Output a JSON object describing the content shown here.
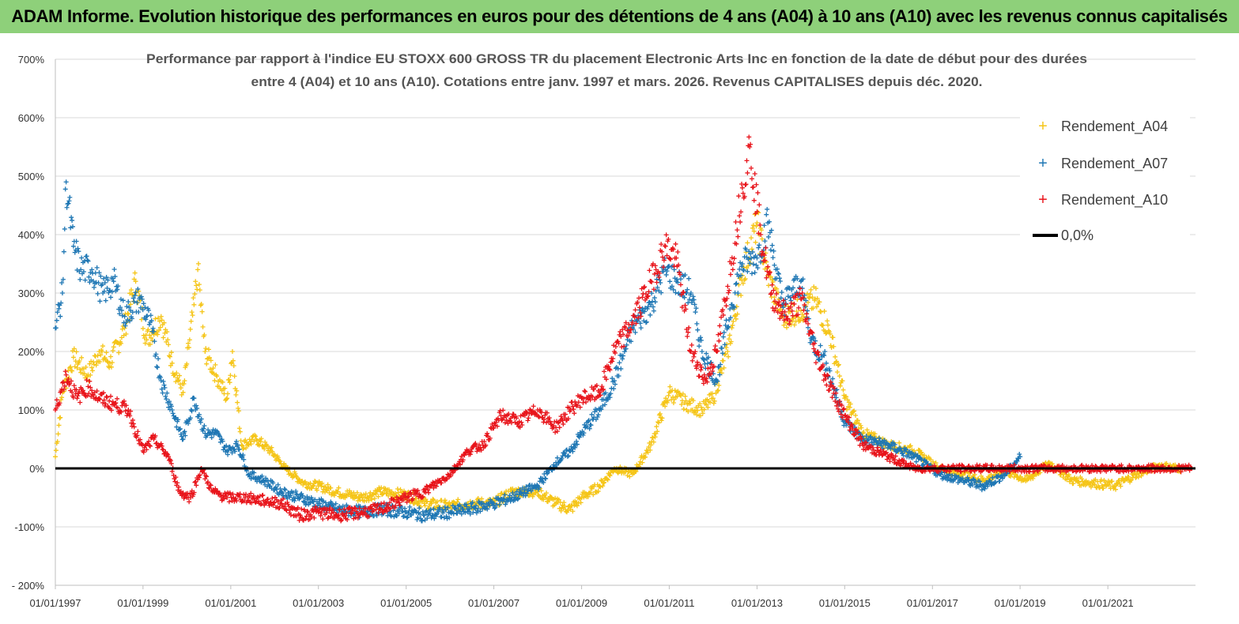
{
  "header": {
    "title": "ADAM Informe. Evolution historique des performances en euros pour des détentions de 4 ans (A04) à 10 ans (A10) avec les revenus connus capitalisés"
  },
  "chart_data": {
    "type": "scatter",
    "title_lines": [
      "Performance par rapport à l'indice EU STOXX 600 GROSS TR  du placement Electronic Arts Inc en fonction de la date de début pour des durées",
      "entre 4 (A04) et 10 ans (A10).  Cotations entre janv. 1997 et mars. 2026. Revenus CAPITALISES depuis déc. 2020."
    ],
    "xlabel": "",
    "ylabel": "",
    "x_range": [
      "1997-01-01",
      "2023-01-01"
    ],
    "ylim": [
      -200,
      700
    ],
    "y_ticks": [
      -200,
      -100,
      0,
      100,
      200,
      300,
      400,
      500,
      600,
      700
    ],
    "y_tick_labels": [
      "- 200%",
      "-100%",
      "0%",
      "100%",
      "200%",
      "300%",
      "400%",
      "500%",
      "600%",
      "700%"
    ],
    "x_ticks": [
      "1997-01-01",
      "1999-01-01",
      "2001-01-01",
      "2003-01-01",
      "2005-01-01",
      "2007-01-01",
      "2009-01-01",
      "2011-01-01",
      "2013-01-01",
      "2015-01-01",
      "2017-01-01",
      "2019-01-01",
      "2021-01-01"
    ],
    "x_tick_labels": [
      "01/01/1997",
      "01/01/1999",
      "01/01/2001",
      "01/01/2003",
      "01/01/2005",
      "01/01/2007",
      "01/01/2009",
      "01/01/2011",
      "01/01/2013",
      "01/01/2015",
      "01/01/2017",
      "01/01/2019",
      "01/01/2021"
    ],
    "grid": "horizontal",
    "legend_position": "top-right",
    "series": [
      {
        "name": "Rendement_A04",
        "color": "#f5c518",
        "marker": "+",
        "points": [
          [
            "1997-01-01",
            20
          ],
          [
            "1997-03-01",
            130
          ],
          [
            "1997-06-01",
            190
          ],
          [
            "1997-10-01",
            160
          ],
          [
            "1998-01-01",
            200
          ],
          [
            "1998-04-01",
            180
          ],
          [
            "1998-08-01",
            240
          ],
          [
            "1998-11-01",
            320
          ],
          [
            "1999-02-01",
            220
          ],
          [
            "1999-06-01",
            260
          ],
          [
            "1999-09-01",
            180
          ],
          [
            "1999-12-01",
            130
          ],
          [
            "2000-03-01",
            280
          ],
          [
            "2000-04-01",
            340
          ],
          [
            "2000-06-01",
            200
          ],
          [
            "2000-09-01",
            160
          ],
          [
            "2000-12-01",
            120
          ],
          [
            "2001-01-15",
            200
          ],
          [
            "2001-04-01",
            40
          ],
          [
            "2001-08-01",
            50
          ],
          [
            "2001-12-01",
            30
          ],
          [
            "2002-04-01",
            0
          ],
          [
            "2002-09-01",
            -25
          ],
          [
            "2003-01-01",
            -30
          ],
          [
            "2003-06-01",
            -40
          ],
          [
            "2004-01-01",
            -50
          ],
          [
            "2004-06-01",
            -40
          ],
          [
            "2005-01-01",
            -45
          ],
          [
            "2005-06-01",
            -60
          ],
          [
            "2006-01-01",
            -65
          ],
          [
            "2006-06-01",
            -60
          ],
          [
            "2007-01-01",
            -60
          ],
          [
            "2007-06-01",
            -40
          ],
          [
            "2008-01-01",
            -40
          ],
          [
            "2008-06-01",
            -60
          ],
          [
            "2008-10-01",
            -70
          ],
          [
            "2009-01-01",
            -50
          ],
          [
            "2009-06-01",
            -30
          ],
          [
            "2009-10-01",
            0
          ],
          [
            "2010-03-01",
            -10
          ],
          [
            "2010-08-01",
            40
          ],
          [
            "2011-01-01",
            130
          ],
          [
            "2011-06-01",
            110
          ],
          [
            "2011-10-01",
            100
          ],
          [
            "2012-01-01",
            120
          ],
          [
            "2012-05-01",
            200
          ],
          [
            "2012-09-01",
            330
          ],
          [
            "2013-01-01",
            420
          ],
          [
            "2013-04-01",
            330
          ],
          [
            "2013-08-01",
            260
          ],
          [
            "2014-01-01",
            270
          ],
          [
            "2014-05-01",
            290
          ],
          [
            "2014-09-01",
            230
          ],
          [
            "2015-01-01",
            120
          ],
          [
            "2015-06-01",
            60
          ],
          [
            "2016-01-01",
            40
          ],
          [
            "2016-08-01",
            30
          ],
          [
            "2017-03-01",
            0
          ],
          [
            "2017-09-01",
            -10
          ],
          [
            "2018-03-01",
            -20
          ],
          [
            "2018-09-01",
            -5
          ],
          [
            "2019-03-01",
            -20
          ],
          [
            "2019-09-01",
            10
          ],
          [
            "2020-03-01",
            -20
          ],
          [
            "2020-09-01",
            -25
          ],
          [
            "2021-03-01",
            -30
          ],
          [
            "2021-09-01",
            -10
          ],
          [
            "2022-03-01",
            5
          ],
          [
            "2022-09-01",
            0
          ]
        ]
      },
      {
        "name": "Rendement_A07",
        "color": "#1f77b4",
        "marker": "+",
        "points": [
          [
            "1997-01-01",
            240
          ],
          [
            "1997-03-01",
            300
          ],
          [
            "1997-04-01",
            490
          ],
          [
            "1997-06-01",
            380
          ],
          [
            "1997-08-01",
            340
          ],
          [
            "1997-11-01",
            340
          ],
          [
            "1998-02-01",
            300
          ],
          [
            "1998-05-01",
            320
          ],
          [
            "1998-08-01",
            260
          ],
          [
            "1998-12-01",
            290
          ],
          [
            "1999-03-01",
            250
          ],
          [
            "1999-06-01",
            150
          ],
          [
            "1999-09-01",
            100
          ],
          [
            "1999-12-01",
            50
          ],
          [
            "2000-03-01",
            120
          ],
          [
            "2000-06-01",
            60
          ],
          [
            "2000-09-01",
            60
          ],
          [
            "2000-12-01",
            30
          ],
          [
            "2001-03-01",
            40
          ],
          [
            "2001-06-01",
            -10
          ],
          [
            "2001-10-01",
            -20
          ],
          [
            "2002-03-01",
            -40
          ],
          [
            "2002-08-01",
            -50
          ],
          [
            "2003-01-01",
            -60
          ],
          [
            "2003-06-01",
            -70
          ],
          [
            "2004-01-01",
            -75
          ],
          [
            "2004-06-01",
            -70
          ],
          [
            "2005-01-01",
            -75
          ],
          [
            "2005-06-01",
            -80
          ],
          [
            "2006-01-01",
            -75
          ],
          [
            "2006-06-01",
            -70
          ],
          [
            "2007-01-01",
            -60
          ],
          [
            "2007-06-01",
            -50
          ],
          [
            "2008-01-01",
            -30
          ],
          [
            "2008-06-01",
            10
          ],
          [
            "2008-10-01",
            30
          ],
          [
            "2009-01-01",
            60
          ],
          [
            "2009-06-01",
            100
          ],
          [
            "2009-10-01",
            150
          ],
          [
            "2010-03-01",
            240
          ],
          [
            "2010-08-01",
            280
          ],
          [
            "2010-12-01",
            340
          ],
          [
            "2011-03-01",
            320
          ],
          [
            "2011-07-01",
            300
          ],
          [
            "2011-10-01",
            200
          ],
          [
            "2012-02-01",
            150
          ],
          [
            "2012-06-01",
            280
          ],
          [
            "2012-09-01",
            350
          ],
          [
            "2013-01-01",
            360
          ],
          [
            "2013-04-01",
            420
          ],
          [
            "2013-08-01",
            280
          ],
          [
            "2014-01-01",
            320
          ],
          [
            "2014-04-01",
            220
          ],
          [
            "2014-08-01",
            180
          ],
          [
            "2015-01-01",
            80
          ],
          [
            "2015-06-01",
            50
          ],
          [
            "2016-01-01",
            40
          ],
          [
            "2016-08-01",
            20
          ],
          [
            "2017-03-01",
            -10
          ],
          [
            "2017-09-01",
            -20
          ],
          [
            "2018-03-01",
            -30
          ],
          [
            "2018-09-01",
            -10
          ],
          [
            "2019-01-01",
            20
          ]
        ]
      },
      {
        "name": "Rendement_A10",
        "color": "#e8141b",
        "marker": "+",
        "points": [
          [
            "1997-01-01",
            100
          ],
          [
            "1997-04-01",
            160
          ],
          [
            "1997-07-01",
            120
          ],
          [
            "1997-10-01",
            140
          ],
          [
            "1998-01-01",
            120
          ],
          [
            "1998-05-01",
            110
          ],
          [
            "1998-09-01",
            100
          ],
          [
            "1999-01-01",
            30
          ],
          [
            "1999-04-01",
            50
          ],
          [
            "1999-08-01",
            20
          ],
          [
            "1999-11-01",
            -40
          ],
          [
            "2000-02-01",
            -50
          ],
          [
            "2000-05-01",
            0
          ],
          [
            "2000-08-01",
            -40
          ],
          [
            "2000-12-01",
            -50
          ],
          [
            "2001-05-01",
            -50
          ],
          [
            "2001-10-01",
            -55
          ],
          [
            "2002-03-01",
            -60
          ],
          [
            "2002-08-01",
            -80
          ],
          [
            "2003-01-01",
            -75
          ],
          [
            "2003-06-01",
            -80
          ],
          [
            "2004-01-01",
            -75
          ],
          [
            "2004-06-01",
            -70
          ],
          [
            "2005-01-01",
            -50
          ],
          [
            "2005-06-01",
            -40
          ],
          [
            "2006-01-01",
            -10
          ],
          [
            "2006-06-01",
            30
          ],
          [
            "2006-10-01",
            40
          ],
          [
            "2007-03-01",
            90
          ],
          [
            "2007-08-01",
            80
          ],
          [
            "2008-01-01",
            100
          ],
          [
            "2008-06-01",
            70
          ],
          [
            "2008-10-01",
            100
          ],
          [
            "2009-01-01",
            120
          ],
          [
            "2009-06-01",
            130
          ],
          [
            "2009-10-01",
            200
          ],
          [
            "2010-03-01",
            250
          ],
          [
            "2010-08-01",
            320
          ],
          [
            "2010-12-01",
            380
          ],
          [
            "2011-03-01",
            360
          ],
          [
            "2011-07-01",
            200
          ],
          [
            "2011-11-01",
            150
          ],
          [
            "2012-02-01",
            200
          ],
          [
            "2012-06-01",
            350
          ],
          [
            "2012-09-01",
            480
          ],
          [
            "2012-11-01",
            550
          ],
          [
            "2013-02-01",
            400
          ],
          [
            "2013-05-01",
            300
          ],
          [
            "2013-09-01",
            260
          ],
          [
            "2014-01-01",
            290
          ],
          [
            "2014-05-01",
            200
          ],
          [
            "2014-09-01",
            140
          ],
          [
            "2015-01-01",
            90
          ],
          [
            "2015-06-01",
            40
          ],
          [
            "2016-01-01",
            20
          ],
          [
            "2016-08-01",
            0
          ],
          [
            "2018-01-01",
            0
          ],
          [
            "2020-01-01",
            0
          ],
          [
            "2022-12-01",
            0
          ]
        ]
      }
    ],
    "reference_line": {
      "name": "0,0%",
      "color": "#000000",
      "y": 0
    }
  }
}
